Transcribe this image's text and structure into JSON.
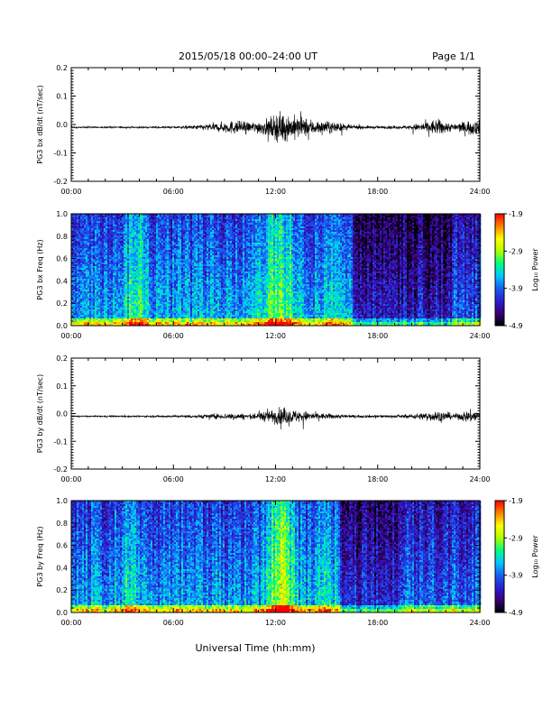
{
  "header": {
    "title": "2015/05/18  00:00–24:00 UT",
    "page_label": "Page 1/1"
  },
  "footer": {
    "xlabel": "Universal Time (hh:mm)"
  },
  "colorbar": {
    "label": "Log₁₀ Power",
    "ticks": [
      "-1.9",
      "-2.9",
      "-3.9",
      "-4.9"
    ],
    "tick_values": [
      -1.9,
      -2.9,
      -3.9,
      -4.9
    ],
    "range": [
      -4.9,
      -1.9
    ],
    "colors": [
      "#000000",
      "#3a007a",
      "#2a1fd0",
      "#1a5ff0",
      "#00c8ff",
      "#00ff80",
      "#b0ff00",
      "#ffff00",
      "#ff8000",
      "#ff0000"
    ]
  },
  "chart_data": [
    {
      "type": "line",
      "ylabel": "PG3 bx dB/dt (nT/sec)",
      "x_ticks": [
        "00:00",
        "06:00",
        "12:00",
        "18:00",
        "24:00"
      ],
      "y_ticks": [
        "0.2",
        "0.1",
        "0.0",
        "-0.1",
        "-0.2"
      ],
      "xlim": [
        0,
        24
      ],
      "ylim": [
        -0.2,
        0.2
      ],
      "baseline": -0.01,
      "envelope": {
        "hours": [
          0,
          4,
          6,
          7,
          8.5,
          9.5,
          10.5,
          11.5,
          12.3,
          13.5,
          14.5,
          15.5,
          16.5,
          18,
          19.5,
          20.5,
          21.5,
          22.5,
          23.5,
          24
        ],
        "amplitude": [
          0.004,
          0.005,
          0.006,
          0.01,
          0.025,
          0.04,
          0.03,
          0.05,
          0.09,
          0.06,
          0.04,
          0.03,
          0.012,
          0.008,
          0.008,
          0.025,
          0.05,
          0.02,
          0.045,
          0.04
        ]
      }
    },
    {
      "type": "heatmap",
      "ylabel": "PG3 bx Freq (Hz)",
      "x_ticks": [
        "00:00",
        "06:00",
        "12:00",
        "18:00",
        "24:00"
      ],
      "y_ticks": [
        "1.0",
        "0.8",
        "0.6",
        "0.4",
        "0.2",
        "0.0"
      ],
      "xlim": [
        0,
        24
      ],
      "ylim": [
        0,
        1
      ],
      "zlim": [
        -4.9,
        -1.9
      ]
    },
    {
      "type": "line",
      "ylabel": "PG3 by dB/dt (nT/sec)",
      "x_ticks": [
        "00:00",
        "06:00",
        "12:00",
        "18:00",
        "24:00"
      ],
      "y_ticks": [
        "0.2",
        "0.1",
        "0.0",
        "-0.1",
        "-0.2"
      ],
      "xlim": [
        0,
        24
      ],
      "ylim": [
        -0.2,
        0.2
      ],
      "baseline": -0.01,
      "envelope": {
        "hours": [
          0,
          4,
          6,
          7,
          8.5,
          9.5,
          10.5,
          11,
          12.3,
          13.5,
          14.5,
          15.5,
          16.5,
          18,
          19.5,
          20.5,
          21.5,
          22.5,
          23.5,
          24
        ],
        "amplitude": [
          0.004,
          0.005,
          0.006,
          0.01,
          0.015,
          0.02,
          0.015,
          0.025,
          0.05,
          0.035,
          0.02,
          0.015,
          0.008,
          0.008,
          0.008,
          0.02,
          0.035,
          0.015,
          0.04,
          0.03
        ]
      }
    },
    {
      "type": "heatmap",
      "ylabel": "PG3 by Freq (Hz)",
      "x_ticks": [
        "00:00",
        "06:00",
        "12:00",
        "18:00",
        "24:00"
      ],
      "y_ticks": [
        "1.0",
        "0.8",
        "0.6",
        "0.4",
        "0.2",
        "0.0"
      ],
      "xlim": [
        0,
        24
      ],
      "ylim": [
        0,
        1
      ],
      "zlim": [
        -4.9,
        -1.9
      ]
    }
  ]
}
